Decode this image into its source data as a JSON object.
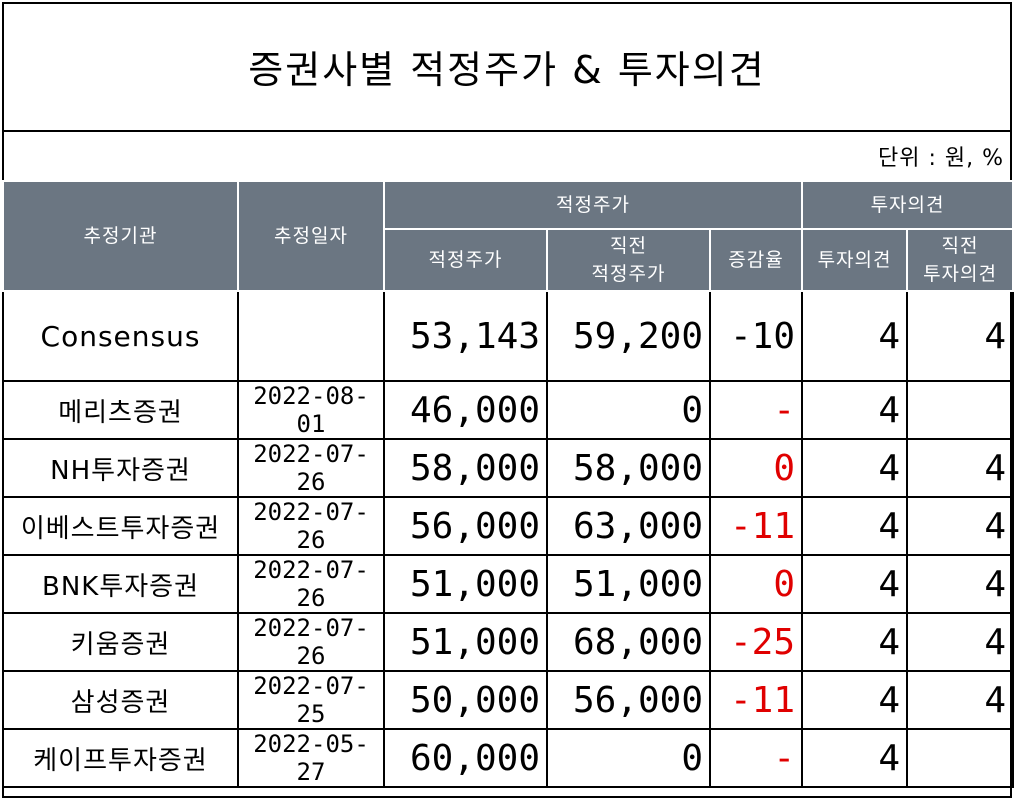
{
  "title": "증권사별 적정주가 & 투자의견",
  "unit": "단위 : 원, %",
  "headers": {
    "agency": "추정기관",
    "date": "추정일자",
    "target_group": "적정주가",
    "opinion_group": "투자의견",
    "target": "적정주가",
    "prev_target": "직전\n적정주가",
    "change": "증감율",
    "opinion": "투자의견",
    "prev_opinion": "직전\n투자의견"
  },
  "consensus": {
    "name": "Consensus",
    "date": "",
    "target": "53,143",
    "prev_target": "59,200",
    "change": "-10",
    "opinion": "4",
    "prev_opinion": "4"
  },
  "rows": [
    {
      "name": "메리츠증권",
      "date": "2022-08-01",
      "target": "46,000",
      "prev_target": "0",
      "change": "-",
      "opinion": "4",
      "prev_opinion": ""
    },
    {
      "name": "NH투자증권",
      "date": "2022-07-26",
      "target": "58,000",
      "prev_target": "58,000",
      "change": "0",
      "opinion": "4",
      "prev_opinion": "4"
    },
    {
      "name": "이베스트투자증권",
      "date": "2022-07-26",
      "target": "56,000",
      "prev_target": "63,000",
      "change": "-11",
      "opinion": "4",
      "prev_opinion": "4"
    },
    {
      "name": "BNK투자증권",
      "date": "2022-07-26",
      "target": "51,000",
      "prev_target": "51,000",
      "change": "0",
      "opinion": "4",
      "prev_opinion": "4"
    },
    {
      "name": "키움증권",
      "date": "2022-07-26",
      "target": "51,000",
      "prev_target": "68,000",
      "change": "-25",
      "opinion": "4",
      "prev_opinion": "4"
    },
    {
      "name": "삼성증권",
      "date": "2022-07-25",
      "target": "50,000",
      "prev_target": "56,000",
      "change": "-11",
      "opinion": "4",
      "prev_opinion": "4"
    },
    {
      "name": "케이프투자증권",
      "date": "2022-05-27",
      "target": "60,000",
      "prev_target": "0",
      "change": "-",
      "opinion": "4",
      "prev_opinion": ""
    }
  ],
  "colors": {
    "header_bg": "#6b7682",
    "change_text": "#e00000"
  }
}
